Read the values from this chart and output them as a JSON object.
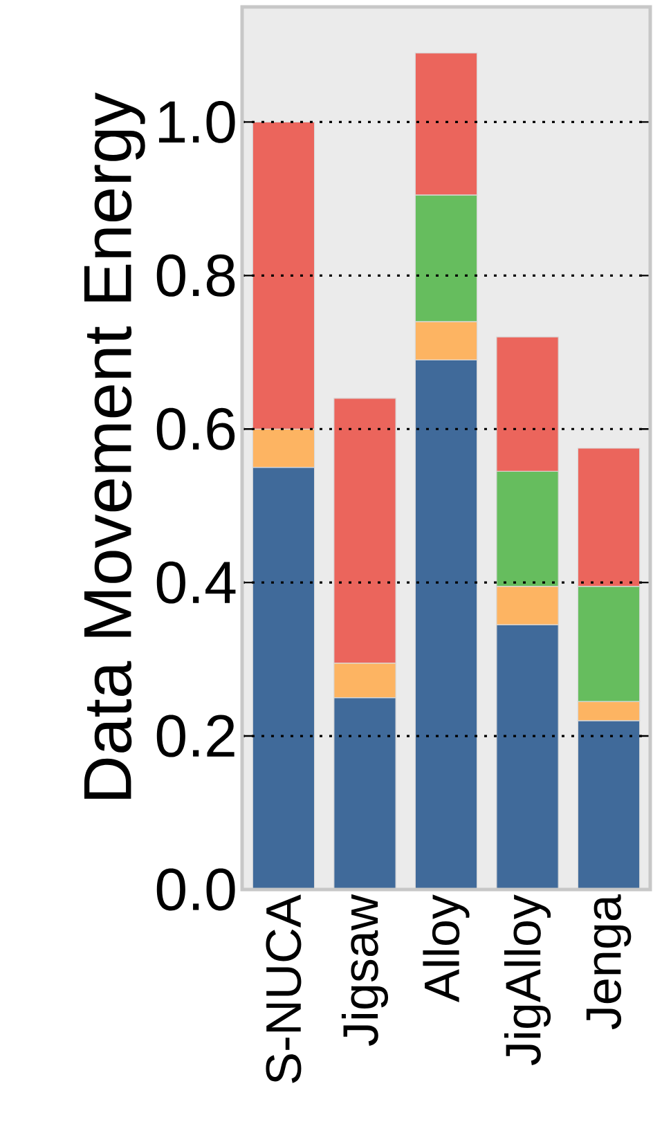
{
  "chart_data": {
    "type": "bar",
    "stacked": true,
    "ylabel": "Data Movement Energy",
    "categories": [
      "S-NUCA",
      "Jigsaw",
      "Alloy",
      "JigAlloy",
      "Jenga"
    ],
    "series": [
      {
        "color": "#406a9a",
        "values": [
          0.55,
          0.25,
          0.69,
          0.345,
          0.22
        ]
      },
      {
        "color": "#fdb462",
        "values": [
          0.05,
          0.045,
          0.05,
          0.05,
          0.025
        ]
      },
      {
        "color": "#66bd5e",
        "values": [
          null,
          null,
          0.165,
          0.15,
          0.15
        ]
      },
      {
        "color": "#eb655c",
        "values": [
          0.4,
          0.345,
          0.185,
          0.175,
          0.18
        ]
      }
    ],
    "ylim": [
      0,
      1.15
    ],
    "yticks": [
      {
        "value": 0,
        "label": "0.0"
      },
      0.2,
      0.4,
      0.6,
      0.8,
      {
        "value": 1,
        "label": "1.0"
      }
    ],
    "grid": "y"
  }
}
